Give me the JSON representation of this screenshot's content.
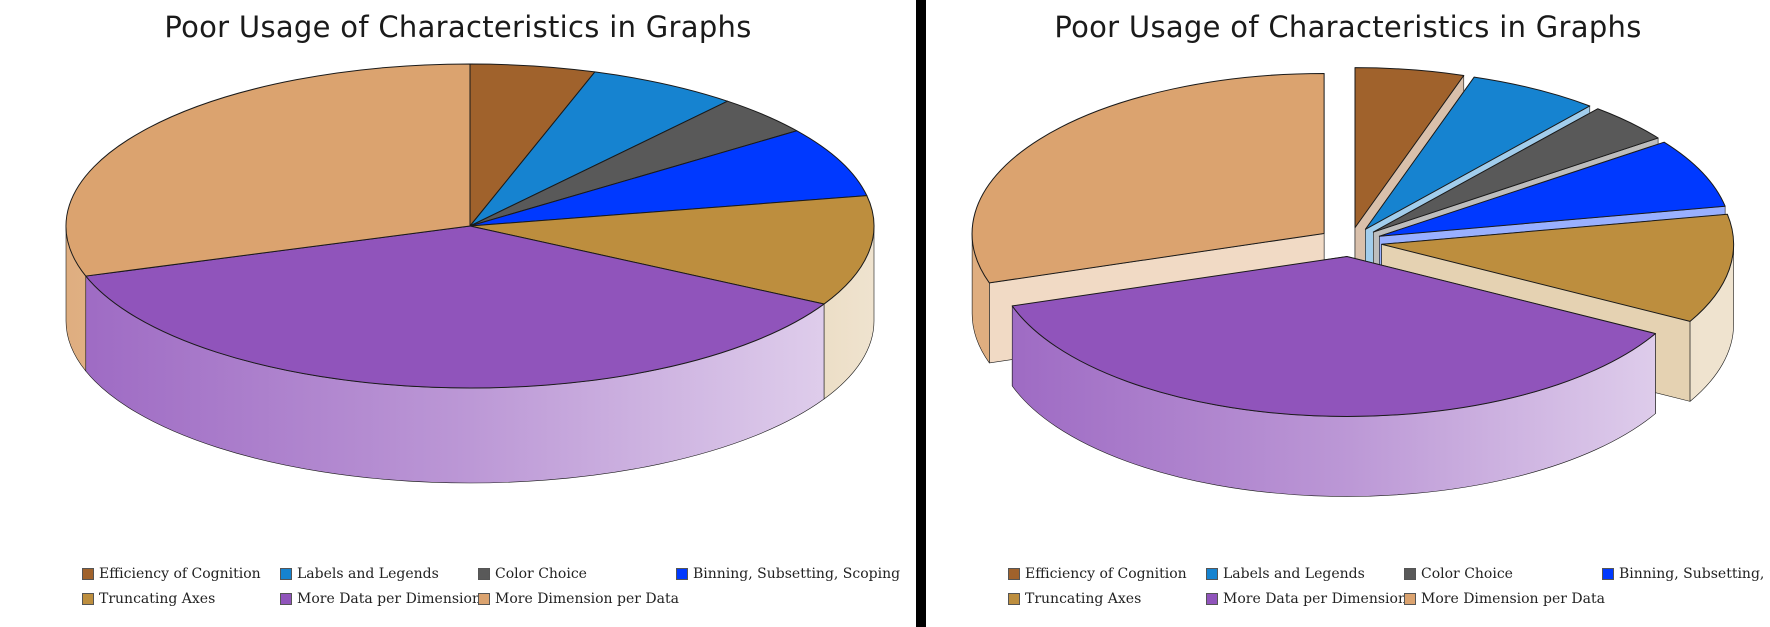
{
  "chart_data": [
    {
      "type": "pie",
      "title": "Poor Usage of Characteristics in Graphs",
      "exploded": false,
      "legend_position": "bottom",
      "categories": [
        "Efficiency of Cognition",
        "Labels and Legends",
        "Color Choice",
        "Binning, Subsetting, Scoping",
        "Truncating Axes",
        "More Data per Dimension",
        "More Dimension per Data"
      ],
      "values": [
        5,
        6,
        4,
        7,
        11,
        37,
        30
      ],
      "colors": [
        "#a0622c",
        "#1683d0",
        "#595959",
        "#0039ff",
        "#bd8e3e",
        "#9054bb",
        "#dba36f"
      ]
    },
    {
      "type": "pie",
      "title": "Poor Usage of Characteristics in Graphs",
      "exploded": true,
      "legend_position": "bottom",
      "categories": [
        "Efficiency of Cognition",
        "Labels and Legends",
        "Color Choice",
        "Binning, Subsetting, Scoping",
        "Truncating Axes",
        "More Data per Dimension",
        "More Dimension per Data"
      ],
      "values": [
        5,
        6,
        4,
        7,
        11,
        37,
        30
      ],
      "colors": [
        "#a0622c",
        "#1683d0",
        "#595959",
        "#0039ff",
        "#bd8e3e",
        "#9054bb",
        "#dba36f"
      ]
    }
  ]
}
